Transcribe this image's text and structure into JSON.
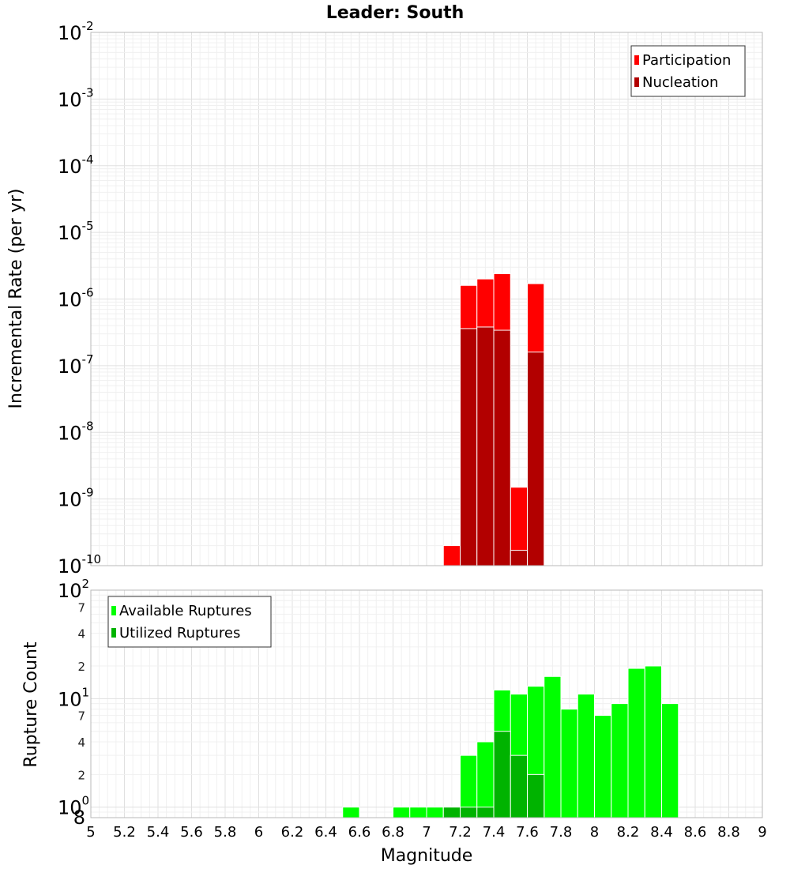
{
  "chart_data": [
    {
      "type": "bar",
      "scale": "log",
      "title": "Leader: South",
      "ylabel": "Incremental Rate (per yr)",
      "xlabel": "",
      "xlim": [
        5,
        9
      ],
      "ylim": [
        1e-10,
        0.01
      ],
      "y_tick_exponents": [
        -2,
        -3,
        -4,
        -5,
        -6,
        -7,
        -8,
        -9,
        -10
      ],
      "bin_width": 0.1,
      "legend": {
        "position": "top-right"
      },
      "series": [
        {
          "name": "Participation",
          "color": "#ff0000",
          "x": [
            7.15,
            7.25,
            7.35,
            7.45,
            7.55,
            7.65
          ],
          "values": [
            2e-10,
            1.6e-06,
            2e-06,
            2.4e-06,
            1.5e-09,
            1.7e-06
          ]
        },
        {
          "name": "Nucleation",
          "color": "#b20000",
          "x": [
            7.25,
            7.35,
            7.45,
            7.55,
            7.65
          ],
          "values": [
            3.6e-07,
            3.8e-07,
            3.4e-07,
            1.7e-10,
            1.6e-07
          ]
        }
      ]
    },
    {
      "type": "bar",
      "scale": "log",
      "title": "",
      "ylabel": "Rupture Count",
      "xlabel": "Magnitude",
      "xlim": [
        5,
        9
      ],
      "ylim": [
        0.8,
        100
      ],
      "x_ticks": [
        "5",
        "5.2",
        "5.4",
        "5.6",
        "5.8",
        "6",
        "6.2",
        "6.4",
        "6.6",
        "6.8",
        "7",
        "7.2",
        "7.4",
        "7.6",
        "7.8",
        "8",
        "8.2",
        "8.4",
        "8.6",
        "8.8",
        "9"
      ],
      "y_major_labels": [
        {
          "value": 100,
          "base": "10",
          "exp": "2"
        },
        {
          "value": 10,
          "base": "10",
          "exp": "1"
        },
        {
          "value": 1,
          "base": "10",
          "exp": "0"
        }
      ],
      "y_minor_labels": [
        {
          "value": 70,
          "label": "7"
        },
        {
          "value": 40,
          "label": "4"
        },
        {
          "value": 20,
          "label": "2"
        },
        {
          "value": 7,
          "label": "7"
        },
        {
          "value": 4,
          "label": "4"
        },
        {
          "value": 2,
          "label": "2"
        },
        {
          "value": 0.8,
          "label": "8"
        }
      ],
      "bin_width": 0.1,
      "legend": {
        "position": "top-left"
      },
      "series": [
        {
          "name": "Available Ruptures",
          "color": "#00ff00",
          "x": [
            6.55,
            6.85,
            6.95,
            7.05,
            7.15,
            7.25,
            7.35,
            7.45,
            7.55,
            7.65,
            7.75,
            7.85,
            7.95,
            8.05,
            8.15,
            8.25,
            8.35,
            8.45
          ],
          "values": [
            1,
            1,
            1,
            1,
            1,
            3,
            4,
            12,
            11,
            13,
            16,
            8,
            11,
            7,
            9,
            19,
            20,
            9
          ]
        },
        {
          "name": "Utilized Ruptures",
          "color": "#00b300",
          "x": [
            7.15,
            7.25,
            7.35,
            7.45,
            7.55,
            7.65
          ],
          "values": [
            1,
            1,
            1,
            5,
            3,
            2
          ]
        }
      ]
    }
  ]
}
